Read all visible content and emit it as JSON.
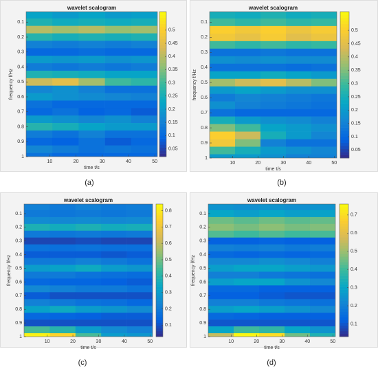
{
  "chart_data": [
    {
      "type": "heatmap",
      "title": "wavelet scalogram",
      "xlabel": "time t/s",
      "ylabel": "frequency f/Hz",
      "caption": "(a)",
      "x": [
        6,
        16,
        26,
        36,
        46
      ],
      "y": [
        0.05,
        0.1,
        0.15,
        0.2,
        0.25,
        0.3,
        0.35,
        0.4,
        0.45,
        0.5,
        0.55,
        0.6,
        0.65,
        0.7,
        0.75,
        0.8,
        0.85,
        0.9,
        0.95,
        1
      ],
      "xlim": [
        1,
        51
      ],
      "ylim": [
        1,
        0.03
      ],
      "xticks": [
        10,
        20,
        30,
        40,
        50
      ],
      "yticks": [
        0.1,
        0.2,
        0.3,
        0.4,
        0.5,
        0.6,
        0.7,
        0.8,
        0.9,
        1
      ],
      "zlim": [
        0.02,
        0.57
      ],
      "zticks": [
        0.05,
        0.1,
        0.15,
        0.2,
        0.25,
        0.3,
        0.35,
        0.4,
        0.45,
        0.5
      ],
      "colormap": "parula",
      "z": [
        [
          0.22,
          0.2,
          0.22,
          0.2,
          0.21
        ],
        [
          0.26,
          0.24,
          0.25,
          0.24,
          0.25
        ],
        [
          0.4,
          0.38,
          0.4,
          0.37,
          0.38
        ],
        [
          0.27,
          0.25,
          0.26,
          0.25,
          0.26
        ],
        [
          0.15,
          0.14,
          0.15,
          0.14,
          0.15
        ],
        [
          0.1,
          0.1,
          0.11,
          0.1,
          0.1
        ],
        [
          0.2,
          0.19,
          0.2,
          0.18,
          0.19
        ],
        [
          0.14,
          0.13,
          0.14,
          0.13,
          0.14
        ],
        [
          0.26,
          0.25,
          0.24,
          0.22,
          0.22
        ],
        [
          0.42,
          0.45,
          0.38,
          0.3,
          0.28
        ],
        [
          0.16,
          0.18,
          0.15,
          0.12,
          0.12
        ],
        [
          0.2,
          0.18,
          0.17,
          0.16,
          0.15
        ],
        [
          0.12,
          0.1,
          0.1,
          0.1,
          0.1
        ],
        [
          0.1,
          0.12,
          0.09,
          0.1,
          0.08
        ],
        [
          0.2,
          0.18,
          0.16,
          0.18,
          0.15
        ],
        [
          0.27,
          0.25,
          0.22,
          0.2,
          0.2
        ],
        [
          0.14,
          0.12,
          0.15,
          0.12,
          0.12
        ],
        [
          0.1,
          0.09,
          0.12,
          0.08,
          0.1
        ],
        [
          0.16,
          0.14,
          0.12,
          0.13,
          0.12
        ],
        [
          0.12,
          0.1,
          0.1,
          0.1,
          0.1
        ]
      ]
    },
    {
      "type": "heatmap",
      "title": "wavelet scalogram",
      "xlabel": "time t/s",
      "ylabel": "frequency f/Hz",
      "caption": "(b)",
      "x": [
        6,
        16,
        26,
        36,
        46
      ],
      "y": [
        0.05,
        0.1,
        0.15,
        0.2,
        0.25,
        0.3,
        0.35,
        0.4,
        0.45,
        0.5,
        0.55,
        0.6,
        0.65,
        0.7,
        0.75,
        0.8,
        0.85,
        0.9,
        0.95,
        1
      ],
      "xlim": [
        1,
        51
      ],
      "ylim": [
        1,
        0.03
      ],
      "xticks": [
        10,
        20,
        30,
        40,
        50
      ],
      "yticks": [
        0.1,
        0.2,
        0.3,
        0.4,
        0.5,
        0.6,
        0.7,
        0.8,
        0.9,
        1
      ],
      "zlim": [
        0.02,
        0.57
      ],
      "zticks": [
        0.05,
        0.1,
        0.15,
        0.2,
        0.25,
        0.3,
        0.35,
        0.4,
        0.45,
        0.5
      ],
      "colormap": "parula",
      "z": [
        [
          0.25,
          0.24,
          0.26,
          0.24,
          0.25
        ],
        [
          0.3,
          0.28,
          0.3,
          0.28,
          0.29
        ],
        [
          0.5,
          0.48,
          0.5,
          0.47,
          0.49
        ],
        [
          0.48,
          0.46,
          0.49,
          0.45,
          0.47
        ],
        [
          0.3,
          0.28,
          0.3,
          0.28,
          0.29
        ],
        [
          0.12,
          0.12,
          0.13,
          0.12,
          0.12
        ],
        [
          0.18,
          0.17,
          0.18,
          0.17,
          0.17
        ],
        [
          0.12,
          0.12,
          0.12,
          0.11,
          0.12
        ],
        [
          0.22,
          0.22,
          0.24,
          0.22,
          0.2
        ],
        [
          0.38,
          0.42,
          0.45,
          0.4,
          0.35
        ],
        [
          0.2,
          0.22,
          0.2,
          0.18,
          0.18
        ],
        [
          0.14,
          0.16,
          0.15,
          0.14,
          0.13
        ],
        [
          0.18,
          0.15,
          0.14,
          0.13,
          0.12
        ],
        [
          0.12,
          0.1,
          0.1,
          0.1,
          0.1
        ],
        [
          0.25,
          0.2,
          0.18,
          0.17,
          0.15
        ],
        [
          0.35,
          0.3,
          0.22,
          0.2,
          0.18
        ],
        [
          0.5,
          0.42,
          0.25,
          0.2,
          0.16
        ],
        [
          0.48,
          0.35,
          0.15,
          0.12,
          0.12
        ],
        [
          0.3,
          0.25,
          0.2,
          0.18,
          0.16
        ],
        [
          0.2,
          0.2,
          0.18,
          0.15,
          0.15
        ]
      ]
    },
    {
      "type": "heatmap",
      "title": "wavelet scalogram",
      "xlabel": "time t/s",
      "ylabel": "frequency f/Hz",
      "caption": "(c)",
      "x": [
        6,
        16,
        26,
        36,
        46
      ],
      "y": [
        0.05,
        0.1,
        0.15,
        0.2,
        0.25,
        0.3,
        0.35,
        0.4,
        0.45,
        0.5,
        0.55,
        0.6,
        0.65,
        0.7,
        0.75,
        0.8,
        0.85,
        0.9,
        0.95,
        1
      ],
      "xlim": [
        1,
        51
      ],
      "ylim": [
        1,
        0.03
      ],
      "xticks": [
        10,
        20,
        30,
        40,
        50
      ],
      "yticks": [
        0.1,
        0.2,
        0.3,
        0.4,
        0.5,
        0.6,
        0.7,
        0.8,
        0.9,
        1
      ],
      "zlim": [
        0.03,
        0.84
      ],
      "zticks": [
        0.1,
        0.2,
        0.3,
        0.4,
        0.5,
        0.6,
        0.7,
        0.8
      ],
      "colormap": "parula",
      "z": [
        [
          0.22,
          0.2,
          0.22,
          0.2,
          0.21
        ],
        [
          0.2,
          0.19,
          0.2,
          0.19,
          0.2
        ],
        [
          0.25,
          0.24,
          0.25,
          0.24,
          0.25
        ],
        [
          0.38,
          0.36,
          0.38,
          0.36,
          0.37
        ],
        [
          0.2,
          0.19,
          0.2,
          0.19,
          0.2
        ],
        [
          0.08,
          0.08,
          0.09,
          0.08,
          0.08
        ],
        [
          0.18,
          0.17,
          0.18,
          0.17,
          0.17
        ],
        [
          0.12,
          0.12,
          0.12,
          0.11,
          0.12
        ],
        [
          0.2,
          0.2,
          0.22,
          0.2,
          0.18
        ],
        [
          0.3,
          0.32,
          0.35,
          0.3,
          0.28
        ],
        [
          0.2,
          0.2,
          0.18,
          0.17,
          0.16
        ],
        [
          0.15,
          0.14,
          0.14,
          0.13,
          0.12
        ],
        [
          0.24,
          0.22,
          0.2,
          0.2,
          0.18
        ],
        [
          0.12,
          0.1,
          0.1,
          0.1,
          0.1
        ],
        [
          0.22,
          0.2,
          0.18,
          0.17,
          0.15
        ],
        [
          0.32,
          0.35,
          0.3,
          0.28,
          0.25
        ],
        [
          0.15,
          0.14,
          0.13,
          0.12,
          0.12
        ],
        [
          0.1,
          0.1,
          0.1,
          0.1,
          0.1
        ],
        [
          0.45,
          0.4,
          0.3,
          0.25,
          0.22
        ],
        [
          0.82,
          0.75,
          0.45,
          0.3,
          0.28
        ]
      ]
    },
    {
      "type": "heatmap",
      "title": "wavelet scalogram",
      "xlabel": "time t/s",
      "ylabel": "frequency f/Hz",
      "caption": "(d)",
      "x": [
        6,
        16,
        26,
        36,
        46
      ],
      "y": [
        0.05,
        0.1,
        0.15,
        0.2,
        0.25,
        0.3,
        0.35,
        0.4,
        0.45,
        0.5,
        0.55,
        0.6,
        0.65,
        0.7,
        0.75,
        0.8,
        0.85,
        0.9,
        0.95,
        1
      ],
      "xlim": [
        1,
        51
      ],
      "ylim": [
        1,
        0.03
      ],
      "xticks": [
        10,
        20,
        30,
        40,
        50
      ],
      "yticks": [
        0.1,
        0.2,
        0.3,
        0.4,
        0.5,
        0.6,
        0.7,
        0.8,
        0.9,
        1
      ],
      "zlim": [
        0.03,
        0.76
      ],
      "zticks": [
        0.1,
        0.2,
        0.3,
        0.4,
        0.5,
        0.6,
        0.7
      ],
      "colormap": "parula",
      "z": [
        [
          0.25,
          0.24,
          0.25,
          0.24,
          0.25
        ],
        [
          0.3,
          0.28,
          0.3,
          0.28,
          0.29
        ],
        [
          0.45,
          0.43,
          0.45,
          0.43,
          0.44
        ],
        [
          0.48,
          0.46,
          0.48,
          0.46,
          0.47
        ],
        [
          0.42,
          0.4,
          0.42,
          0.4,
          0.41
        ],
        [
          0.12,
          0.12,
          0.13,
          0.12,
          0.12
        ],
        [
          0.2,
          0.19,
          0.2,
          0.18,
          0.19
        ],
        [
          0.14,
          0.13,
          0.14,
          0.13,
          0.14
        ],
        [
          0.22,
          0.22,
          0.24,
          0.22,
          0.2
        ],
        [
          0.28,
          0.3,
          0.3,
          0.28,
          0.26
        ],
        [
          0.2,
          0.2,
          0.18,
          0.17,
          0.16
        ],
        [
          0.28,
          0.3,
          0.3,
          0.25,
          0.22
        ],
        [
          0.14,
          0.14,
          0.12,
          0.12,
          0.12
        ],
        [
          0.12,
          0.12,
          0.11,
          0.1,
          0.1
        ],
        [
          0.2,
          0.2,
          0.18,
          0.17,
          0.16
        ],
        [
          0.28,
          0.3,
          0.28,
          0.25,
          0.22
        ],
        [
          0.14,
          0.13,
          0.12,
          0.12,
          0.12
        ],
        [
          0.1,
          0.1,
          0.1,
          0.1,
          0.1
        ],
        [
          0.3,
          0.4,
          0.38,
          0.3,
          0.25
        ],
        [
          0.55,
          0.75,
          0.7,
          0.45,
          0.35
        ]
      ]
    }
  ]
}
